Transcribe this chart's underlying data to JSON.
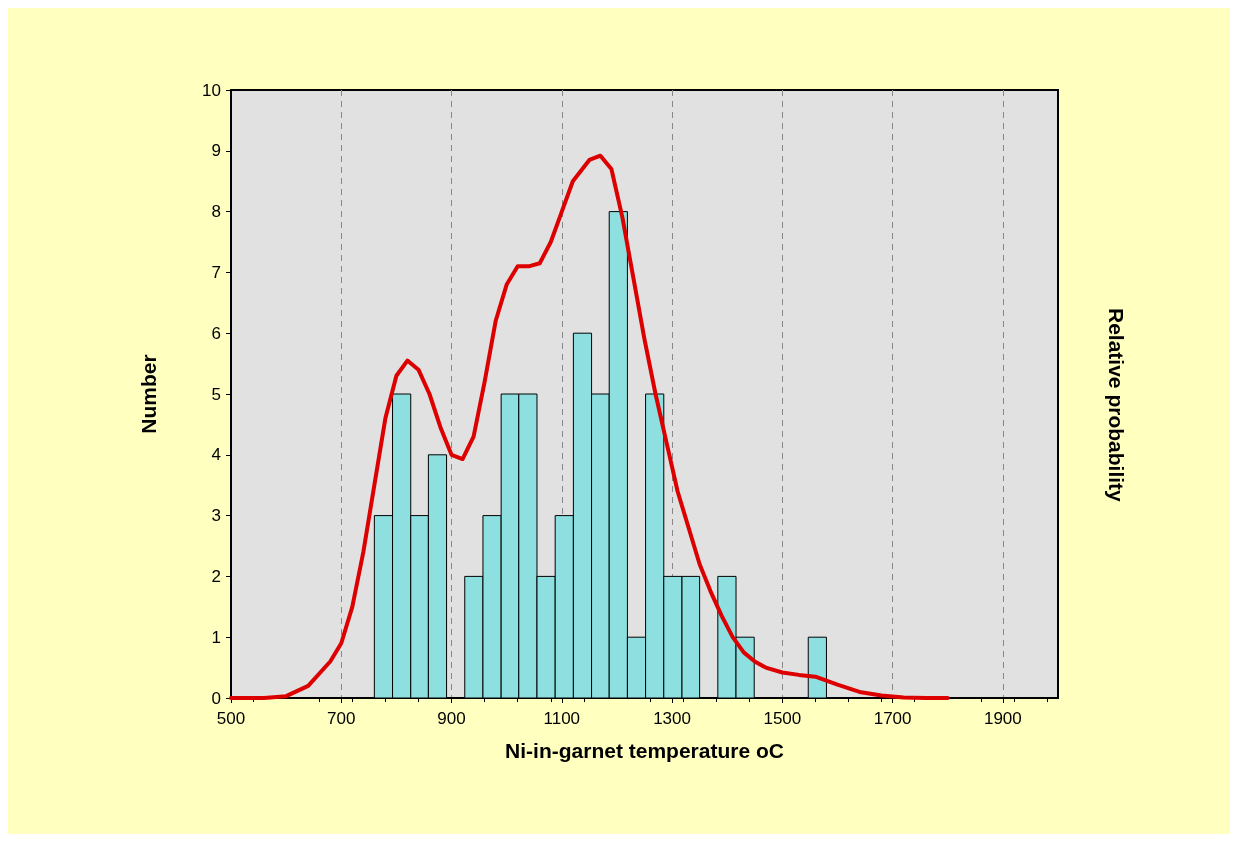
{
  "chart_data": {
    "type": "histogram",
    "xlabel": "Ni-in-garnet temperature oC",
    "ylabel": "Number",
    "y2label": "Relative probability",
    "xlim": [
      500,
      2000
    ],
    "xticks": [
      500,
      700,
      900,
      1100,
      1300,
      1500,
      1700,
      1900
    ],
    "ylim": [
      0,
      10
    ],
    "yticks": [
      0,
      1,
      2,
      3,
      4,
      5,
      6,
      7,
      8,
      9,
      10
    ],
    "grid": "x",
    "series": [
      {
        "type": "histogram",
        "color": "#8ee0e0",
        "bins": [
          760,
          793,
          826,
          858,
          891,
          924,
          957,
          990,
          1022,
          1055,
          1088,
          1121,
          1154,
          1186,
          1219,
          1252,
          1285,
          1318,
          1350,
          1383,
          1416,
          1449,
          1547,
          1580
        ],
        "values": [
          3,
          5,
          3,
          4,
          0,
          2,
          3,
          5,
          5,
          2,
          3,
          6,
          5,
          8,
          1,
          5,
          2,
          2,
          0,
          2,
          1,
          0,
          1
        ]
      },
      {
        "type": "line",
        "color": "#dd0000",
        "x": [
          500,
          560,
          600,
          640,
          680,
          700,
          720,
          740,
          760,
          780,
          800,
          820,
          840,
          860,
          880,
          900,
          920,
          940,
          960,
          980,
          1000,
          1020,
          1040,
          1060,
          1080,
          1100,
          1120,
          1150,
          1170,
          1190,
          1210,
          1230,
          1250,
          1270,
          1290,
          1310,
          1330,
          1350,
          1370,
          1390,
          1410,
          1430,
          1450,
          1470,
          1500,
          1530,
          1560,
          1600,
          1640,
          1680,
          1720,
          1760,
          1800
        ],
        "values": [
          0,
          0,
          0.03,
          0.2,
          0.6,
          0.9,
          1.5,
          2.4,
          3.5,
          4.6,
          5.3,
          5.55,
          5.4,
          5,
          4.45,
          4,
          3.93,
          4.3,
          5.2,
          6.2,
          6.8,
          7.1,
          7.1,
          7.15,
          7.5,
          8,
          8.5,
          8.85,
          8.92,
          8.7,
          7.9,
          6.9,
          5.9,
          5,
          4.2,
          3.4,
          2.8,
          2.2,
          1.75,
          1.35,
          1,
          0.75,
          0.6,
          0.5,
          0.42,
          0.38,
          0.35,
          0.22,
          0.1,
          0.04,
          0.01,
          0,
          0
        ]
      }
    ]
  }
}
